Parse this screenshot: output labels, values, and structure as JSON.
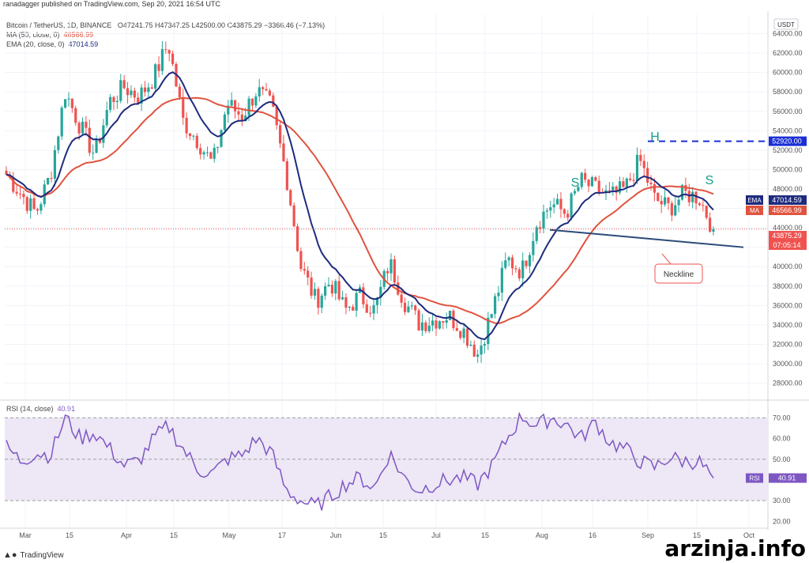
{
  "header": {
    "publisher": "ranadagger published on TradingView.com, Sep 20, 2021 16:54 UTC",
    "symbol_line": {
      "symbol": "Bitcoin / TetherUS, 1D, BINANCE",
      "ohlc": "O47241.75  H47347.25  L42500.00  C43875.29  −3366.46 (−7.13%)"
    },
    "ma_line": {
      "label": "MA (50, close, 0)",
      "value": "46566.99"
    },
    "ema_line": {
      "label": "EMA (20, close, 0)",
      "value": "47014.59"
    },
    "rsi_line": {
      "label": "RSI (14, close)",
      "value": "40.91"
    },
    "currency": "USDT"
  },
  "footer": {
    "logo_text": "TradingView",
    "watermark": "arzinja.info"
  },
  "colors": {
    "up": "#26a69a",
    "down": "#ef5350",
    "ma": "#e0533f",
    "ema": "#1e2b7e",
    "rsi": "#7e57c2",
    "rsi_band": "#ede7f6",
    "neckline": "#2b4a78",
    "h_line": "#1a2fd6",
    "annotation": "#159e8a"
  },
  "chart_data": [
    {
      "type": "candlestick",
      "title": "Bitcoin / TetherUS, 1D, BINANCE",
      "x_labels": [
        "Mar",
        "15",
        "Apr",
        "15",
        "May",
        "17",
        "Jun",
        "15",
        "Jul",
        "15",
        "Aug",
        "16",
        "Sep",
        "15",
        "Oct"
      ],
      "y_ticks": [
        28000,
        30000,
        32000,
        34000,
        36000,
        38000,
        40000,
        42000,
        44000,
        46000,
        48000,
        50000,
        52000,
        54000,
        56000,
        58000,
        60000,
        62000,
        64000
      ],
      "ylim": [
        26500,
        66000
      ],
      "price_labels": [
        {
          "name": "EMA",
          "value": "47014.59"
        },
        {
          "name": "MA",
          "value": "46566.99"
        },
        {
          "name": "last",
          "value": "43875.29",
          "sub": "07:05:14"
        },
        {
          "name": "level",
          "value": "52920.00"
        }
      ],
      "annotations": [
        {
          "text": "S",
          "role": "left-shoulder"
        },
        {
          "text": "H",
          "role": "head"
        },
        {
          "text": "S",
          "role": "right-shoulder"
        },
        {
          "text": "Neckline",
          "role": "callout"
        }
      ],
      "horizontal_level": 52920,
      "close_series_sampled": [
        49500,
        47500,
        45500,
        49500,
        58000,
        54500,
        51500,
        57000,
        58500,
        57500,
        59500,
        63000,
        55000,
        53000,
        50500,
        56800,
        55500,
        58200,
        56500,
        49500,
        40000,
        36500,
        38500,
        35500,
        37000,
        35500,
        40500,
        36500,
        34200,
        34500,
        35000,
        33500,
        31000,
        35500,
        40800,
        39500,
        44500,
        46500,
        45500,
        48800,
        48000,
        47200,
        48000,
        51000,
        47000,
        46000,
        47500,
        47200,
        43875
      ],
      "neckline": {
        "start": 43800,
        "end": 42000
      },
      "series": [
        {
          "name": "MA (50, close, 0)",
          "last": 46566.99
        },
        {
          "name": "EMA (20, close, 0)",
          "last": 47014.59
        }
      ]
    },
    {
      "type": "line",
      "title": "RSI (14, close)",
      "y_ticks": [
        20,
        30,
        40,
        50,
        60,
        70
      ],
      "ylim": [
        19,
        77
      ],
      "band": [
        30,
        70
      ],
      "last_value": 40.91,
      "values_sampled": [
        56,
        49,
        53,
        52,
        70,
        60,
        63,
        55,
        47,
        49,
        60,
        66,
        55,
        45,
        43,
        50,
        52,
        60,
        53,
        35,
        30,
        27,
        32,
        38,
        41,
        36,
        53,
        41,
        35,
        38,
        40,
        41,
        38,
        47,
        60,
        71,
        66,
        70,
        67,
        60,
        68,
        58,
        55,
        49,
        46,
        51,
        49,
        49,
        40.91
      ]
    }
  ]
}
